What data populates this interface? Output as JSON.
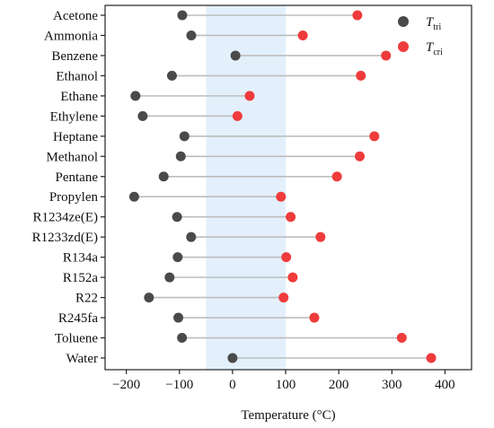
{
  "chart_data": {
    "type": "dumbbell",
    "xlabel": "Temperature (°C)",
    "xlim": [
      -240,
      450
    ],
    "xticks": [
      -200,
      -100,
      0,
      100,
      200,
      300,
      400
    ],
    "highlight_band": [
      -50,
      100
    ],
    "colors": {
      "tri": "#4a4a4a",
      "cri": "#ef3b3b",
      "band": "#e3f0fb",
      "connector": "#bdbdbd"
    },
    "legend": {
      "position": "top-right",
      "entries": [
        {
          "key": "tri",
          "base": "T",
          "sub": "tri"
        },
        {
          "key": "cri",
          "base": "T",
          "sub": "cri"
        }
      ]
    },
    "categories": [
      "Acetone",
      "Ammonia",
      "Benzene",
      "Ethanol",
      "Ethane",
      "Ethylene",
      "Heptane",
      "Methanol",
      "Pentane",
      "Propylen",
      "R1234ze(E)",
      "R1233zd(E)",
      "R134a",
      "R152a",
      "R22",
      "R245fa",
      "Toluene",
      "Water"
    ],
    "series": [
      {
        "key": "tri",
        "values": [
          -94.7,
          -77.7,
          5.5,
          -114.1,
          -182.8,
          -169.2,
          -90.6,
          -97.5,
          -129.7,
          -185.2,
          -104.5,
          -78.0,
          -103.3,
          -118.6,
          -157.4,
          -102.1,
          -95.2,
          0.01
        ]
      },
      {
        "key": "cri",
        "values": [
          235.0,
          132.3,
          288.9,
          241.6,
          32.2,
          9.2,
          267.0,
          239.5,
          196.6,
          91.1,
          109.4,
          165.6,
          101.1,
          113.3,
          96.1,
          154.0,
          318.6,
          374.0
        ]
      }
    ]
  }
}
